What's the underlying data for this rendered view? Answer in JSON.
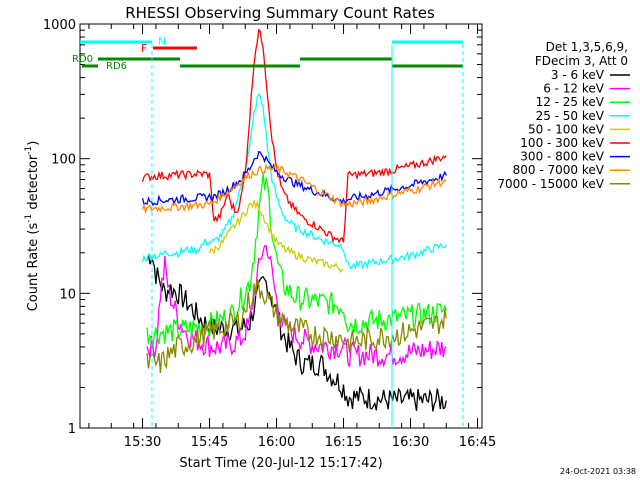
{
  "chart_data": {
    "type": "line",
    "title": "RHESSI Observing Summary Count Rates",
    "xlabel": "Start Time (20-Jul-12 15:17:42)",
    "ylabel_main": "Count Rate (s",
    "ylabel_sup1": "-1",
    "ylabel_mid": " detector",
    "ylabel_sup2": "-1",
    "ylabel_end": ")",
    "y_scale": "log",
    "ylim": [
      1,
      1000
    ],
    "y_ticks": [
      {
        "v": 1,
        "label": "1"
      },
      {
        "v": 10,
        "label": "10"
      },
      {
        "v": 100,
        "label": "100"
      },
      {
        "v": 1000,
        "label": "1000"
      }
    ],
    "xlim_min": [
      0,
      90
    ],
    "x_ticks": [
      {
        "m": 14,
        "label": "15:30"
      },
      {
        "m": 29,
        "label": "15:45"
      },
      {
        "m": 44,
        "label": "16:00"
      },
      {
        "m": 59,
        "label": "16:15"
      },
      {
        "m": 74,
        "label": "16:30"
      },
      {
        "m": 89,
        "label": "16:45"
      }
    ],
    "legend_header": [
      "Det 1,3,5,6,9,",
      "FDecim 3, Att 0"
    ],
    "series": [
      {
        "name": "3 - 6 keV",
        "color": "#000000",
        "points": [
          [
            15,
            18
          ],
          [
            16,
            20
          ],
          [
            17,
            14
          ],
          [
            18,
            12
          ],
          [
            19,
            10
          ],
          [
            20,
            11
          ],
          [
            22,
            10
          ],
          [
            24,
            8.5
          ],
          [
            26,
            7
          ],
          [
            28,
            6
          ],
          [
            30,
            5.5
          ],
          [
            32,
            5.5
          ],
          [
            34,
            5.5
          ],
          [
            36,
            5.5
          ],
          [
            38,
            6
          ],
          [
            39,
            8
          ],
          [
            40,
            10
          ],
          [
            41,
            12
          ],
          [
            42,
            12
          ],
          [
            43,
            9
          ],
          [
            44,
            7
          ],
          [
            45,
            5.5
          ],
          [
            46,
            4.5
          ],
          [
            47,
            4
          ],
          [
            48,
            3.5
          ],
          [
            50,
            3
          ],
          [
            52,
            3
          ],
          [
            54,
            3
          ],
          [
            56,
            2.5
          ],
          [
            58,
            2.2
          ],
          [
            59,
            2
          ],
          [
            60,
            1.7
          ],
          [
            62,
            1.7
          ],
          [
            70,
            1.6
          ],
          [
            80,
            1.6
          ],
          [
            82,
            1.6
          ]
        ]
      },
      {
        "name": "6 - 12 keV",
        "color": "#ff00ff",
        "points": [
          [
            15,
            4
          ],
          [
            17,
            4
          ],
          [
            18,
            10
          ],
          [
            19,
            16
          ],
          [
            20,
            10
          ],
          [
            22,
            6.5
          ],
          [
            24,
            5
          ],
          [
            26,
            4.5
          ],
          [
            28,
            4.2
          ],
          [
            30,
            4
          ],
          [
            32,
            4
          ],
          [
            34,
            4.2
          ],
          [
            36,
            4.5
          ],
          [
            38,
            6
          ],
          [
            39,
            10
          ],
          [
            40,
            15
          ],
          [
            41,
            22
          ],
          [
            42,
            22
          ],
          [
            43,
            14
          ],
          [
            44,
            9
          ],
          [
            45,
            6.5
          ],
          [
            46,
            5.5
          ],
          [
            48,
            5
          ],
          [
            50,
            4.5
          ],
          [
            52,
            4.2
          ],
          [
            56,
            4
          ],
          [
            59,
            4
          ],
          [
            60,
            3.5
          ],
          [
            62,
            3.5
          ],
          [
            70,
            3.5
          ],
          [
            78,
            3.8
          ],
          [
            82,
            4
          ]
        ]
      },
      {
        "name": "12 - 25 keV",
        "color": "#00ff00",
        "points": [
          [
            15,
            5
          ],
          [
            20,
            5.2
          ],
          [
            25,
            5.5
          ],
          [
            30,
            6
          ],
          [
            34,
            7
          ],
          [
            36,
            9
          ],
          [
            38,
            12
          ],
          [
            39,
            20
          ],
          [
            40,
            40
          ],
          [
            41,
            65
          ],
          [
            42,
            60
          ],
          [
            43,
            30
          ],
          [
            44,
            18
          ],
          [
            45,
            13
          ],
          [
            46,
            11
          ],
          [
            48,
            9.5
          ],
          [
            50,
            9
          ],
          [
            55,
            8.5
          ],
          [
            59,
            8
          ],
          [
            60,
            6
          ],
          [
            62,
            6
          ],
          [
            70,
            6.5
          ],
          [
            78,
            7
          ],
          [
            82,
            7.5
          ]
        ]
      },
      {
        "name": "25 - 50 keV",
        "color": "#00ffff",
        "points": [
          [
            14,
            18
          ],
          [
            16,
            19
          ],
          [
            18,
            19
          ],
          [
            19,
            20
          ],
          [
            20,
            20
          ],
          [
            22,
            20
          ],
          [
            24,
            21
          ],
          [
            26,
            21
          ],
          [
            27,
            22
          ],
          [
            28,
            24
          ],
          [
            30,
            24
          ],
          [
            32,
            28
          ],
          [
            34,
            36
          ],
          [
            36,
            60
          ],
          [
            38,
            120
          ],
          [
            39,
            220
          ],
          [
            40,
            300
          ],
          [
            41,
            240
          ],
          [
            42,
            120
          ],
          [
            43,
            70
          ],
          [
            44,
            52
          ],
          [
            45,
            42
          ],
          [
            46,
            36
          ],
          [
            48,
            31
          ],
          [
            50,
            29
          ],
          [
            52,
            27
          ],
          [
            54,
            25
          ],
          [
            56,
            24
          ],
          [
            58,
            23
          ],
          [
            59,
            22
          ],
          [
            60,
            16
          ],
          [
            62,
            16
          ],
          [
            66,
            17
          ],
          [
            70,
            18
          ],
          [
            74,
            19
          ],
          [
            78,
            21
          ],
          [
            82,
            23
          ]
        ]
      },
      {
        "name": "50 - 100 keV",
        "color": "#cccc00",
        "points": [
          [
            29,
            20
          ],
          [
            30,
            21
          ],
          [
            32,
            24
          ],
          [
            34,
            30
          ],
          [
            36,
            36
          ],
          [
            37,
            40
          ],
          [
            38,
            45
          ],
          [
            39,
            46
          ],
          [
            40,
            44
          ],
          [
            41,
            38
          ],
          [
            42,
            32
          ],
          [
            43,
            28
          ],
          [
            44,
            24
          ],
          [
            46,
            21
          ],
          [
            48,
            19.5
          ],
          [
            50,
            18.5
          ],
          [
            52,
            17.5
          ],
          [
            55,
            16.5
          ],
          [
            58,
            15.5
          ],
          [
            59,
            15
          ]
        ]
      },
      {
        "name": "100 - 300 keV",
        "color": "#ff0000",
        "points": [
          [
            14,
            72
          ],
          [
            16,
            74
          ],
          [
            18,
            75
          ],
          [
            20,
            75
          ],
          [
            22,
            76
          ],
          [
            24,
            76
          ],
          [
            26,
            77
          ],
          [
            28,
            77
          ],
          [
            29,
            76
          ],
          [
            30,
            35
          ],
          [
            31,
            36
          ],
          [
            32,
            42
          ],
          [
            33,
            55
          ],
          [
            34,
            45
          ],
          [
            35,
            40
          ],
          [
            36,
            50
          ],
          [
            37,
            80
          ],
          [
            38,
            200
          ],
          [
            39,
            550
          ],
          [
            40,
            900
          ],
          [
            41,
            700
          ],
          [
            42,
            300
          ],
          [
            43,
            140
          ],
          [
            44,
            85
          ],
          [
            45,
            62
          ],
          [
            46,
            52
          ],
          [
            48,
            42
          ],
          [
            50,
            36
          ],
          [
            52,
            33
          ],
          [
            54,
            30
          ],
          [
            56,
            27
          ],
          [
            58,
            25
          ],
          [
            59,
            24
          ],
          [
            60,
            75
          ],
          [
            62,
            76
          ],
          [
            66,
            78
          ],
          [
            70,
            82
          ],
          [
            74,
            88
          ],
          [
            78,
            95
          ],
          [
            80,
            100
          ],
          [
            82,
            105
          ]
        ]
      },
      {
        "name": "300 - 800 keV",
        "color": "#0000ff",
        "points": [
          [
            14,
            48
          ],
          [
            18,
            49
          ],
          [
            22,
            50
          ],
          [
            26,
            51
          ],
          [
            29,
            52
          ],
          [
            30,
            52
          ],
          [
            32,
            56
          ],
          [
            34,
            62
          ],
          [
            36,
            70
          ],
          [
            38,
            85
          ],
          [
            39,
            100
          ],
          [
            40,
            110
          ],
          [
            41,
            106
          ],
          [
            42,
            95
          ],
          [
            43,
            86
          ],
          [
            44,
            80
          ],
          [
            46,
            72
          ],
          [
            48,
            66
          ],
          [
            50,
            62
          ],
          [
            52,
            58
          ],
          [
            54,
            55
          ],
          [
            56,
            52
          ],
          [
            58,
            49
          ],
          [
            59,
            48
          ],
          [
            60,
            50
          ],
          [
            64,
            53
          ],
          [
            68,
            57
          ],
          [
            72,
            61
          ],
          [
            76,
            66
          ],
          [
            80,
            72
          ],
          [
            82,
            75
          ]
        ]
      },
      {
        "name": "800 - 7000 keV",
        "color": "#ff8800",
        "points": [
          [
            14,
            42
          ],
          [
            18,
            43
          ],
          [
            22,
            44
          ],
          [
            26,
            45
          ],
          [
            29,
            46
          ],
          [
            30,
            48
          ],
          [
            32,
            54
          ],
          [
            34,
            60
          ],
          [
            36,
            68
          ],
          [
            38,
            76
          ],
          [
            40,
            82
          ],
          [
            42,
            84
          ],
          [
            44,
            84
          ],
          [
            46,
            80
          ],
          [
            48,
            74
          ],
          [
            50,
            68
          ],
          [
            52,
            62
          ],
          [
            54,
            56
          ],
          [
            56,
            52
          ],
          [
            58,
            48
          ],
          [
            59,
            46
          ],
          [
            60,
            46
          ],
          [
            64,
            48
          ],
          [
            68,
            52
          ],
          [
            72,
            56
          ],
          [
            76,
            60
          ],
          [
            80,
            66
          ],
          [
            82,
            68
          ]
        ]
      },
      {
        "name": "7000 - 15000 keV",
        "color": "#888800",
        "points": [
          [
            15,
            3
          ],
          [
            18,
            3
          ],
          [
            20,
            3.5
          ],
          [
            22,
            4
          ],
          [
            24,
            4.2
          ],
          [
            26,
            4.5
          ],
          [
            28,
            5
          ],
          [
            30,
            5.3
          ],
          [
            32,
            5.6
          ],
          [
            34,
            6
          ],
          [
            36,
            6.5
          ],
          [
            38,
            9
          ],
          [
            39,
            10.5
          ],
          [
            40,
            11
          ],
          [
            41,
            10.5
          ],
          [
            42,
            9
          ],
          [
            43,
            8
          ],
          [
            44,
            7
          ],
          [
            45,
            6.5
          ],
          [
            46,
            6
          ],
          [
            48,
            5.6
          ],
          [
            50,
            5.3
          ],
          [
            52,
            5
          ],
          [
            56,
            4.8
          ],
          [
            59,
            4.6
          ],
          [
            60,
            4.3
          ],
          [
            64,
            4.5
          ],
          [
            68,
            4.8
          ],
          [
            72,
            5
          ],
          [
            76,
            5.5
          ],
          [
            80,
            6
          ],
          [
            82,
            6.5
          ]
        ]
      }
    ],
    "annotations": {
      "N_label": "N",
      "F_label": "F",
      "RD0_label": "RD0",
      "RD6_label": "RD6"
    },
    "footer_date": "24-Oct-2021 03:38"
  }
}
